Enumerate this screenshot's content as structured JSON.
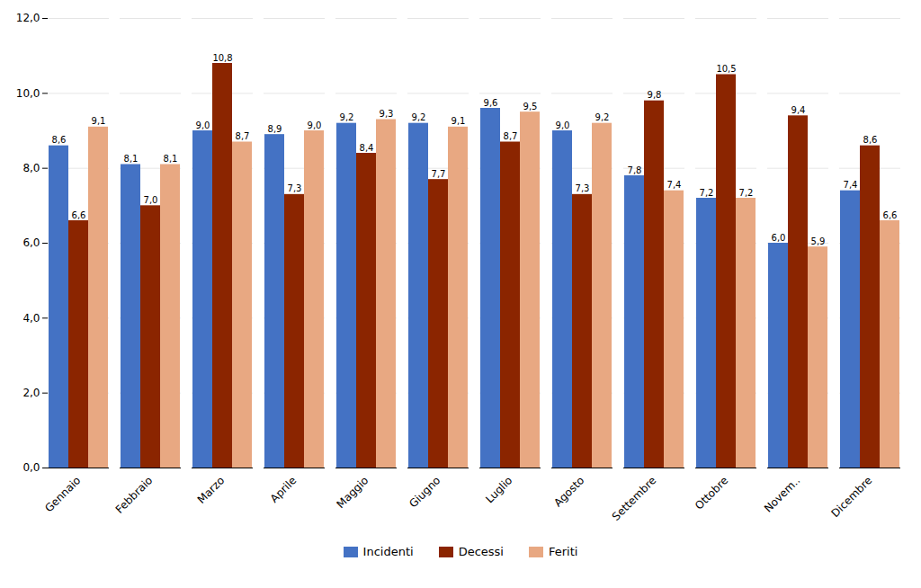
{
  "chart_data": {
    "type": "bar",
    "categories": [
      "Gennaio",
      "Febbraio",
      "Marzo",
      "Aprile",
      "Maggio",
      "Giugno",
      "Luglio",
      "Agosto",
      "Settembre",
      "Ottobre",
      "Novem..",
      "Dicembre"
    ],
    "series": [
      {
        "name": "Incidenti",
        "color": "#4472C4",
        "values": [
          8.6,
          8.1,
          9.0,
          8.9,
          9.2,
          9.2,
          9.6,
          9.0,
          7.8,
          7.2,
          6.0,
          7.4
        ],
        "value_labels": [
          "8,6",
          "8,1",
          "9,0",
          "8,9",
          "9,2",
          "9,2",
          "9,6",
          "9,0",
          "7,8",
          "7,2",
          "6,0",
          "7,4"
        ]
      },
      {
        "name": "Decessi",
        "color": "#8B2500",
        "values": [
          6.6,
          7.0,
          10.8,
          7.3,
          8.4,
          7.7,
          8.7,
          7.3,
          9.8,
          10.5,
          9.4,
          8.6
        ],
        "value_labels": [
          "6,6",
          "7,0",
          "10,8",
          "7,3",
          "8,4",
          "7,7",
          "8,7",
          "7,3",
          "9,8",
          "10,5",
          "9,4",
          "8,6"
        ]
      },
      {
        "name": "Feriti",
        "color": "#E8A882",
        "values": [
          9.1,
          8.1,
          8.7,
          9.0,
          9.3,
          9.1,
          9.5,
          9.2,
          7.4,
          7.2,
          5.9,
          6.6
        ],
        "value_labels": [
          "9,1",
          "8,1",
          "8,7",
          "9,0",
          "9,3",
          "9,1",
          "9,5",
          "9,2",
          "7,4",
          "7,2",
          "5,9",
          "6,6"
        ]
      }
    ],
    "ylim": [
      0,
      12
    ],
    "yticks": [
      {
        "value": 0,
        "label": "0,0"
      },
      {
        "value": 2,
        "label": "2,0"
      },
      {
        "value": 4,
        "label": "4,0"
      },
      {
        "value": 6,
        "label": "6,0"
      },
      {
        "value": 8,
        "label": "8,0"
      },
      {
        "value": 10,
        "label": "10,0"
      },
      {
        "value": 12,
        "label": "12,0"
      }
    ],
    "grid": true,
    "legend": "bottom",
    "data_labels": true
  }
}
